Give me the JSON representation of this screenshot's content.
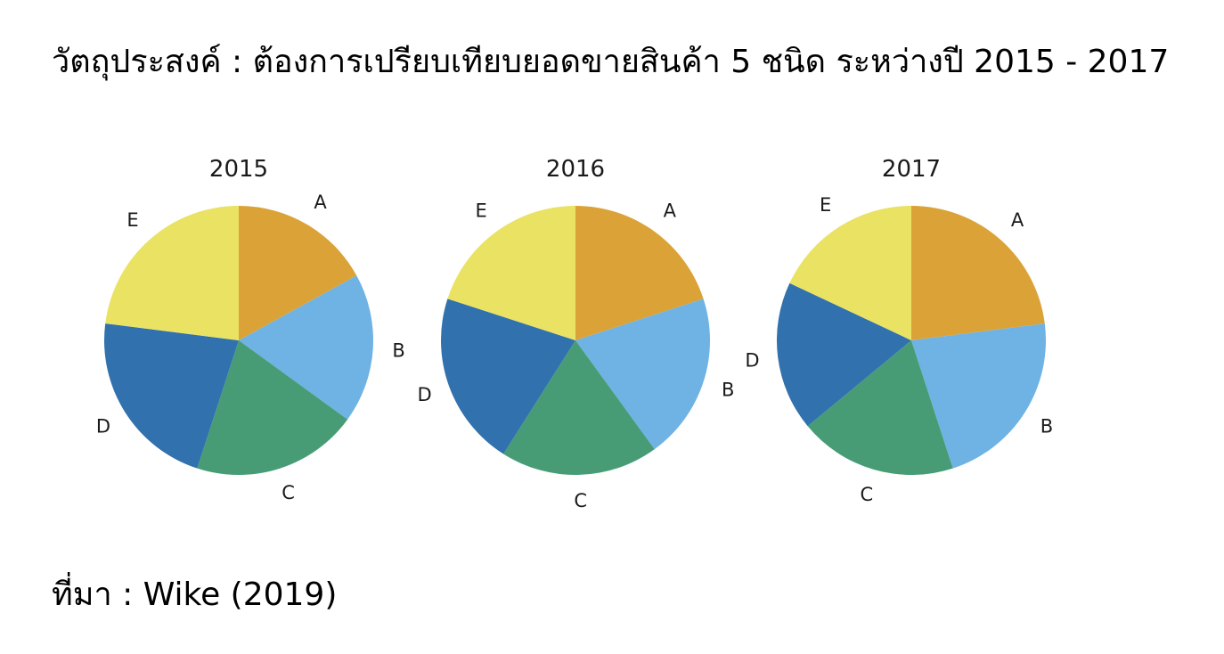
{
  "heading": "วัตถุประสงค์ : ต้องการเปรียบเทียบยอดขายสินค้า 5 ชนิด ระหว่างปี 2015 - 2017",
  "source": "ที่มา : Wike (2019)",
  "colors": {
    "A": "#DBA337",
    "B": "#6FB2E4",
    "C": "#479C76",
    "D": "#3171AD",
    "E": "#EAE262"
  },
  "chart_data": [
    {
      "type": "pie",
      "title": "2015",
      "categories": [
        "A",
        "B",
        "C",
        "D",
        "E"
      ],
      "values": [
        17,
        18,
        20,
        22,
        23
      ]
    },
    {
      "type": "pie",
      "title": "2016",
      "categories": [
        "A",
        "B",
        "C",
        "D",
        "E"
      ],
      "values": [
        20,
        20,
        19,
        21,
        20
      ]
    },
    {
      "type": "pie",
      "title": "2017",
      "categories": [
        "A",
        "B",
        "C",
        "D",
        "E"
      ],
      "values": [
        23,
        22,
        19,
        18,
        18
      ]
    }
  ]
}
